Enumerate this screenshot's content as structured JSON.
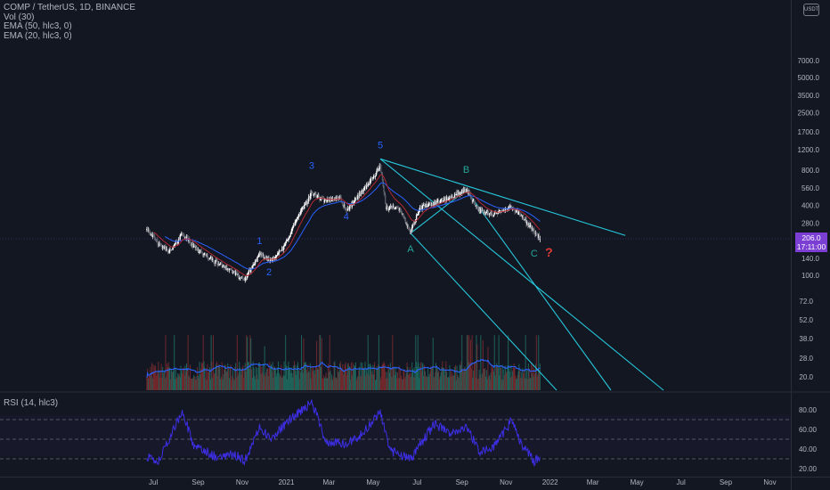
{
  "header": {
    "symbol_line": "COMP / TetherUS, 1D, BINANCE",
    "indicators": [
      "Vol (30)",
      "EMA (50, hlc3, 0)",
      "EMA (20, hlc3, 0)"
    ],
    "currency": "USDT"
  },
  "price_tag": {
    "price": "206.0",
    "countdown": "17:11:00"
  },
  "rsi_label": "RSI (14, hlc3)",
  "colors": {
    "background": "#131722",
    "up": "#ffffff",
    "down": "#6b6e77",
    "ema50": "#2962ff",
    "ema20": "#b22833",
    "volume_ma": "#2962ff",
    "channel": "#26c6da",
    "wave_label": "#2962ff",
    "abc_label": "#26a69a",
    "rsi": "#3d2ee6",
    "price_tag": "#7b3fd3"
  },
  "chart_data": [
    {
      "type": "candlestick",
      "title": "COMP / TetherUS, 1D, BINANCE",
      "y_scale": "log",
      "ylim": [
        75,
        9000
      ],
      "x_range": [
        "2020-06-16",
        "2022-11-30"
      ],
      "y_ticks": [
        "7000.0",
        "5000.0",
        "3500.0",
        "2500.0",
        "1700.0",
        "1200.0",
        "800.0",
        "560.0",
        "400.0",
        "280.0",
        "140.0",
        "100.0"
      ],
      "x_ticks": [
        {
          "date": "2020-07-01",
          "label": "Jul"
        },
        {
          "date": "2020-09-01",
          "label": "Sep"
        },
        {
          "date": "2020-11-01",
          "label": "Nov"
        },
        {
          "date": "2021-01-01",
          "label": "2021"
        },
        {
          "date": "2021-03-01",
          "label": "Mar"
        },
        {
          "date": "2021-05-01",
          "label": "May"
        },
        {
          "date": "2021-07-01",
          "label": "Jul"
        },
        {
          "date": "2021-09-01",
          "label": "Sep"
        },
        {
          "date": "2021-11-01",
          "label": "Nov"
        },
        {
          "date": "2022-01-01",
          "label": "2022"
        },
        {
          "date": "2022-03-01",
          "label": "Mar"
        },
        {
          "date": "2022-05-01",
          "label": "May"
        },
        {
          "date": "2022-07-01",
          "label": "Jul"
        },
        {
          "date": "2022-09-01",
          "label": "Sep"
        },
        {
          "date": "2022-11-01",
          "label": "Nov"
        }
      ],
      "price_keypoints": [
        {
          "date": "2020-06-22",
          "close": 255
        },
        {
          "date": "2020-07-08",
          "close": 185
        },
        {
          "date": "2020-07-25",
          "close": 160
        },
        {
          "date": "2020-08-10",
          "close": 230
        },
        {
          "date": "2020-08-25",
          "close": 180
        },
        {
          "date": "2020-09-10",
          "close": 150
        },
        {
          "date": "2020-09-25",
          "close": 130
        },
        {
          "date": "2020-10-15",
          "close": 112
        },
        {
          "date": "2020-11-03",
          "close": 90
        },
        {
          "date": "2020-11-25",
          "close": 150
        },
        {
          "date": "2020-12-10",
          "close": 135
        },
        {
          "date": "2020-12-28",
          "close": 170
        },
        {
          "date": "2021-01-15",
          "close": 300
        },
        {
          "date": "2021-02-05",
          "close": 510
        },
        {
          "date": "2021-02-25",
          "close": 430
        },
        {
          "date": "2021-03-15",
          "close": 470
        },
        {
          "date": "2021-03-25",
          "close": 360
        },
        {
          "date": "2021-04-15",
          "close": 520
        },
        {
          "date": "2021-05-03",
          "close": 720
        },
        {
          "date": "2021-05-11",
          "close": 870
        },
        {
          "date": "2021-05-19",
          "close": 380
        },
        {
          "date": "2021-06-05",
          "close": 390
        },
        {
          "date": "2021-06-22",
          "close": 235
        },
        {
          "date": "2021-07-05",
          "close": 380
        },
        {
          "date": "2021-07-25",
          "close": 420
        },
        {
          "date": "2021-08-10",
          "close": 450
        },
        {
          "date": "2021-08-25",
          "close": 500
        },
        {
          "date": "2021-09-07",
          "close": 550
        },
        {
          "date": "2021-09-25",
          "close": 360
        },
        {
          "date": "2021-10-15",
          "close": 330
        },
        {
          "date": "2021-11-08",
          "close": 390
        },
        {
          "date": "2021-11-25",
          "close": 310
        },
        {
          "date": "2021-12-05",
          "close": 260
        },
        {
          "date": "2021-12-18",
          "close": 206
        }
      ],
      "last_price": 206.0,
      "series": [
        {
          "name": "EMA (50, hlc3, 0)"
        },
        {
          "name": "EMA (20, hlc3, 0)"
        }
      ],
      "annotations": [
        {
          "text": "1",
          "date": "2020-11-25",
          "price": 185,
          "color": "wave"
        },
        {
          "text": "2",
          "date": "2020-12-08",
          "price": 100,
          "color": "wave"
        },
        {
          "text": "3",
          "date": "2021-02-05",
          "price": 820,
          "color": "wave"
        },
        {
          "text": "4",
          "date": "2021-03-25",
          "price": 300,
          "color": "wave"
        },
        {
          "text": "5",
          "date": "2021-05-11",
          "price": 1230,
          "color": "wave"
        },
        {
          "text": "A",
          "date": "2021-06-22",
          "price": 158,
          "color": "abc"
        },
        {
          "text": "B",
          "date": "2021-09-07",
          "price": 760,
          "color": "abc"
        },
        {
          "text": "C",
          "date": "2021-12-10",
          "price": 145,
          "color": "abc"
        },
        {
          "text": "?",
          "date": "2021-12-18",
          "price": 145,
          "color": "red"
        }
      ],
      "channel": {
        "upper": [
          {
            "date": "2021-05-11",
            "price": 1000
          },
          {
            "date": "2022-04-15",
            "price": 220
          }
        ],
        "lower_parallels": [
          {
            "from": {
              "date": "2021-06-22",
              "price": 230
            },
            "slope_ref": "upper"
          },
          {
            "from": {
              "date": "2021-09-07",
              "price": 540
            },
            "slope_ref": "upper"
          },
          {
            "from": {
              "date": "2021-05-11",
              "price": 1000
            },
            "slope_ref": "upper"
          }
        ]
      }
    },
    {
      "type": "bar",
      "title": "Vol (30)",
      "y_ticks": [
        "72.0",
        "52.0",
        "38.0",
        "28.0",
        "20.0"
      ]
    },
    {
      "type": "line",
      "title": "RSI (14, hlc3)",
      "ylim": [
        20,
        90
      ],
      "y_ticks": [
        "80.00",
        "60.00",
        "40.00",
        "20.00"
      ],
      "bands": [
        70,
        50,
        30
      ],
      "keypoints": [
        {
          "date": "2020-06-22",
          "value": 32
        },
        {
          "date": "2020-07-08",
          "value": 28
        },
        {
          "date": "2020-08-10",
          "value": 78
        },
        {
          "date": "2020-08-25",
          "value": 45
        },
        {
          "date": "2020-09-25",
          "value": 32
        },
        {
          "date": "2020-10-20",
          "value": 35
        },
        {
          "date": "2020-11-05",
          "value": 28
        },
        {
          "date": "2020-11-25",
          "value": 62
        },
        {
          "date": "2020-12-10",
          "value": 50
        },
        {
          "date": "2021-01-05",
          "value": 70
        },
        {
          "date": "2021-02-05",
          "value": 88
        },
        {
          "date": "2021-02-25",
          "value": 48
        },
        {
          "date": "2021-03-25",
          "value": 45
        },
        {
          "date": "2021-04-15",
          "value": 55
        },
        {
          "date": "2021-05-11",
          "value": 78
        },
        {
          "date": "2021-05-25",
          "value": 38
        },
        {
          "date": "2021-06-22",
          "value": 30
        },
        {
          "date": "2021-07-25",
          "value": 66
        },
        {
          "date": "2021-08-15",
          "value": 56
        },
        {
          "date": "2021-09-07",
          "value": 62
        },
        {
          "date": "2021-09-25",
          "value": 38
        },
        {
          "date": "2021-10-15",
          "value": 42
        },
        {
          "date": "2021-11-08",
          "value": 68
        },
        {
          "date": "2021-11-25",
          "value": 42
        },
        {
          "date": "2021-12-10",
          "value": 27
        },
        {
          "date": "2021-12-18",
          "value": 32
        }
      ]
    }
  ]
}
